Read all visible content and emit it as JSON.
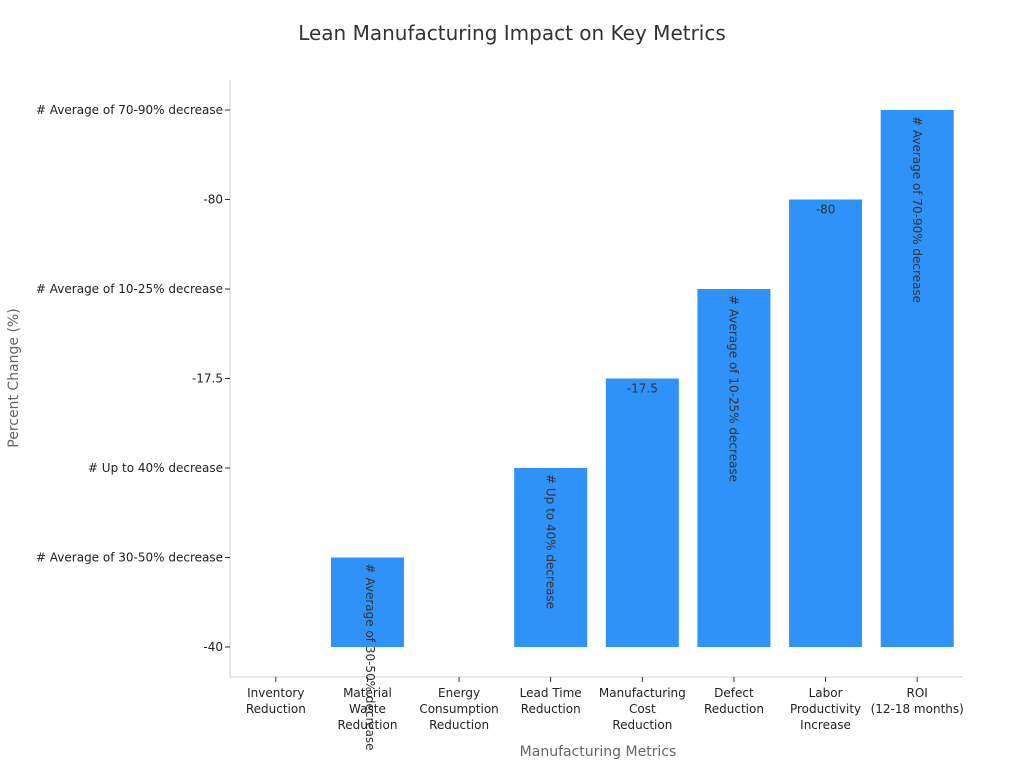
{
  "chart_data": {
    "type": "bar",
    "title": "Lean Manufacturing Impact on Key Metrics",
    "xlabel": "Manufacturing Metrics",
    "ylabel": "Percent Change (%)",
    "y_categories": [
      "-40",
      "# Average of 30-50% decrease",
      "# Up to 40% decrease",
      "-17.5",
      "# Average of 10-25% decrease",
      "-80",
      "# Average of 70-90% decrease"
    ],
    "categories": [
      [
        "Inventory",
        "Reduction"
      ],
      [
        "Material",
        "Waste",
        "Reduction"
      ],
      [
        "Energy",
        "Consumption",
        "Reduction"
      ],
      [
        "Lead Time",
        "Reduction"
      ],
      [
        "Manufacturing",
        "Cost",
        "Reduction"
      ],
      [
        "Defect",
        "Reduction"
      ],
      [
        "Labor",
        "Productivity",
        "Increase"
      ],
      [
        "ROI",
        "(12-18 months)"
      ]
    ],
    "values": [
      null,
      "# Average of 30-50% decrease",
      null,
      "# Up to 40% decrease",
      "-17.5",
      "# Average of 10-25% decrease",
      "-80",
      "# Average of 70-90% decrease"
    ],
    "data_labels": [
      "",
      "# Average of 30-50% decrease",
      "",
      "# Up to 40% decrease",
      "-17.5",
      "# Average of 10-25% decrease",
      "-80",
      "# Average of 70-90% decrease"
    ],
    "label_orientation": [
      "",
      "vertical-tiny",
      "",
      "vertical",
      "horizontal",
      "vertical",
      "horizontal",
      "vertical"
    ],
    "bar_color": "#2e92f8",
    "grid": false
  }
}
